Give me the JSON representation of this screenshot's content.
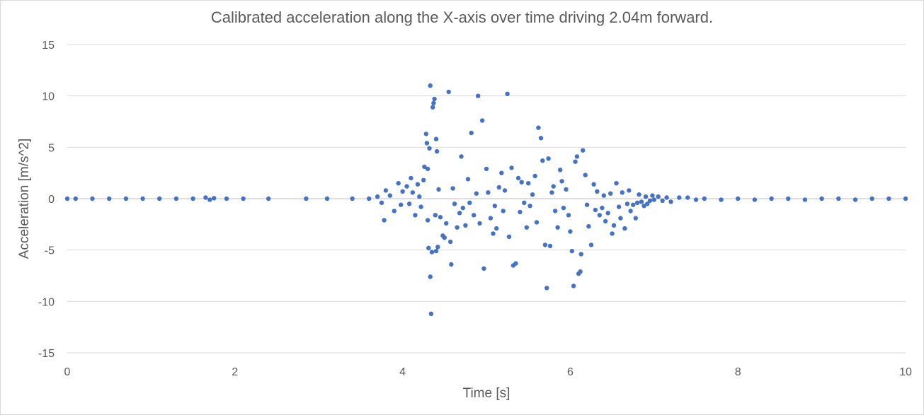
{
  "chart_data": {
    "type": "scatter",
    "title": "Calibrated acceleration along the X-axis over time driving 2.04m forward.",
    "xlabel": "Time [s]",
    "ylabel": "Acceleration [m/s^2]",
    "xlim": [
      0,
      10
    ],
    "ylim": [
      -15,
      15
    ],
    "x_ticks": [
      0,
      2,
      4,
      6,
      8,
      10
    ],
    "y_ticks": [
      15,
      10,
      5,
      0,
      -5,
      -10,
      -15
    ],
    "grid": "horizontal",
    "marker_color": "#4472C4",
    "series": [
      {
        "points": [
          [
            0.0,
            0.0
          ],
          [
            0.1,
            0.0
          ],
          [
            0.3,
            0.0
          ],
          [
            0.5,
            0.0
          ],
          [
            0.7,
            0.0
          ],
          [
            0.9,
            0.0
          ],
          [
            1.1,
            0.0
          ],
          [
            1.3,
            0.0
          ],
          [
            1.5,
            0.0
          ],
          [
            1.65,
            0.1
          ],
          [
            1.7,
            -0.1
          ],
          [
            1.75,
            0.05
          ],
          [
            1.9,
            0.0
          ],
          [
            2.1,
            0.0
          ],
          [
            2.4,
            0.0
          ],
          [
            2.85,
            0.0
          ],
          [
            3.1,
            0.0
          ],
          [
            3.4,
            0.0
          ],
          [
            3.6,
            0.0
          ],
          [
            3.7,
            0.2
          ],
          [
            3.75,
            -0.4
          ],
          [
            3.78,
            -2.1
          ],
          [
            3.8,
            0.8
          ],
          [
            3.85,
            0.3
          ],
          [
            3.9,
            -1.2
          ],
          [
            3.95,
            1.5
          ],
          [
            3.98,
            -0.6
          ],
          [
            4.0,
            0.7
          ],
          [
            4.05,
            1.2
          ],
          [
            4.08,
            -0.5
          ],
          [
            4.1,
            2.0
          ],
          [
            4.12,
            0.6
          ],
          [
            4.15,
            -1.6
          ],
          [
            4.18,
            1.4
          ],
          [
            4.2,
            0.2
          ],
          [
            4.22,
            -0.8
          ],
          [
            4.25,
            1.8
          ],
          [
            4.26,
            3.1
          ],
          [
            4.28,
            6.3
          ],
          [
            4.29,
            5.4
          ],
          [
            4.3,
            -2.1
          ],
          [
            4.3,
            2.9
          ],
          [
            4.31,
            -4.8
          ],
          [
            4.32,
            4.9
          ],
          [
            4.33,
            11.0
          ],
          [
            4.33,
            -7.6
          ],
          [
            4.34,
            -11.2
          ],
          [
            4.35,
            -5.2
          ],
          [
            4.36,
            8.9
          ],
          [
            4.37,
            9.3
          ],
          [
            4.38,
            9.7
          ],
          [
            4.39,
            -1.6
          ],
          [
            4.4,
            -5.1
          ],
          [
            4.4,
            5.8
          ],
          [
            4.41,
            4.6
          ],
          [
            4.42,
            -4.7
          ],
          [
            4.43,
            0.9
          ],
          [
            4.45,
            -1.8
          ],
          [
            4.48,
            -3.6
          ],
          [
            4.5,
            -3.8
          ],
          [
            4.52,
            -2.4
          ],
          [
            4.55,
            10.4
          ],
          [
            4.57,
            -4.2
          ],
          [
            4.58,
            -6.4
          ],
          [
            4.6,
            1.0
          ],
          [
            4.62,
            -0.5
          ],
          [
            4.65,
            -2.8
          ],
          [
            4.68,
            -1.4
          ],
          [
            4.7,
            4.1
          ],
          [
            4.72,
            -0.9
          ],
          [
            4.75,
            -2.6
          ],
          [
            4.78,
            1.9
          ],
          [
            4.8,
            -0.4
          ],
          [
            4.82,
            6.4
          ],
          [
            4.85,
            -1.6
          ],
          [
            4.88,
            0.5
          ],
          [
            4.9,
            10.0
          ],
          [
            4.92,
            -2.4
          ],
          [
            4.95,
            7.6
          ],
          [
            4.97,
            -6.8
          ],
          [
            5.0,
            2.9
          ],
          [
            5.02,
            0.6
          ],
          [
            5.05,
            -1.9
          ],
          [
            5.08,
            -3.4
          ],
          [
            5.1,
            -0.7
          ],
          [
            5.12,
            -2.9
          ],
          [
            5.15,
            1.1
          ],
          [
            5.18,
            2.5
          ],
          [
            5.2,
            -1.2
          ],
          [
            5.22,
            0.8
          ],
          [
            5.25,
            10.2
          ],
          [
            5.27,
            -3.7
          ],
          [
            5.3,
            3.0
          ],
          [
            5.32,
            -6.5
          ],
          [
            5.35,
            -6.3
          ],
          [
            5.38,
            2.0
          ],
          [
            5.4,
            -1.3
          ],
          [
            5.42,
            1.6
          ],
          [
            5.45,
            -0.4
          ],
          [
            5.48,
            -2.8
          ],
          [
            5.5,
            1.5
          ],
          [
            5.52,
            -0.7
          ],
          [
            5.55,
            0.4
          ],
          [
            5.58,
            2.2
          ],
          [
            5.6,
            -2.3
          ],
          [
            5.62,
            6.9
          ],
          [
            5.65,
            5.9
          ],
          [
            5.67,
            3.7
          ],
          [
            5.7,
            -4.5
          ],
          [
            5.72,
            -8.7
          ],
          [
            5.74,
            3.9
          ],
          [
            5.76,
            -4.6
          ],
          [
            5.78,
            0.6
          ],
          [
            5.8,
            1.2
          ],
          [
            5.82,
            -1.2
          ],
          [
            5.85,
            -2.8
          ],
          [
            5.88,
            2.8
          ],
          [
            5.9,
            1.7
          ],
          [
            5.92,
            -0.9
          ],
          [
            5.95,
            0.9
          ],
          [
            5.98,
            -1.6
          ],
          [
            6.0,
            -3.2
          ],
          [
            6.02,
            -5.1
          ],
          [
            6.04,
            -8.5
          ],
          [
            6.06,
            3.6
          ],
          [
            6.08,
            4.1
          ],
          [
            6.1,
            -7.3
          ],
          [
            6.12,
            -7.1
          ],
          [
            6.13,
            -5.4
          ],
          [
            6.15,
            4.7
          ],
          [
            6.18,
            2.3
          ],
          [
            6.2,
            -0.6
          ],
          [
            6.22,
            -2.7
          ],
          [
            6.25,
            -4.5
          ],
          [
            6.28,
            1.4
          ],
          [
            6.3,
            -1.1
          ],
          [
            6.32,
            0.7
          ],
          [
            6.35,
            -1.6
          ],
          [
            6.38,
            -0.9
          ],
          [
            6.4,
            0.3
          ],
          [
            6.42,
            -2.2
          ],
          [
            6.45,
            -1.4
          ],
          [
            6.48,
            0.5
          ],
          [
            6.5,
            -3.4
          ],
          [
            6.52,
            -2.6
          ],
          [
            6.55,
            1.5
          ],
          [
            6.58,
            -0.8
          ],
          [
            6.6,
            -1.9
          ],
          [
            6.62,
            0.6
          ],
          [
            6.65,
            -2.9
          ],
          [
            6.68,
            -0.5
          ],
          [
            6.7,
            0.8
          ],
          [
            6.72,
            -1.2
          ],
          [
            6.75,
            -0.6
          ],
          [
            6.78,
            -1.9
          ],
          [
            6.8,
            -0.4
          ],
          [
            6.82,
            0.4
          ],
          [
            6.85,
            -0.3
          ],
          [
            6.88,
            -0.7
          ],
          [
            6.9,
            0.2
          ],
          [
            6.92,
            -0.5
          ],
          [
            6.95,
            -0.2
          ],
          [
            6.98,
            0.3
          ],
          [
            7.0,
            -0.1
          ],
          [
            7.05,
            0.2
          ],
          [
            7.1,
            -0.2
          ],
          [
            7.15,
            0.1
          ],
          [
            7.2,
            -0.3
          ],
          [
            7.3,
            0.1
          ],
          [
            7.4,
            0.1
          ],
          [
            7.5,
            -0.1
          ],
          [
            7.6,
            0.0
          ],
          [
            7.8,
            -0.1
          ],
          [
            8.0,
            0.0
          ],
          [
            8.2,
            -0.1
          ],
          [
            8.4,
            0.0
          ],
          [
            8.6,
            0.0
          ],
          [
            8.8,
            -0.1
          ],
          [
            9.0,
            0.0
          ],
          [
            9.2,
            0.0
          ],
          [
            9.4,
            -0.1
          ],
          [
            9.6,
            0.0
          ],
          [
            9.8,
            0.0
          ],
          [
            10.0,
            0.0
          ]
        ]
      }
    ]
  }
}
